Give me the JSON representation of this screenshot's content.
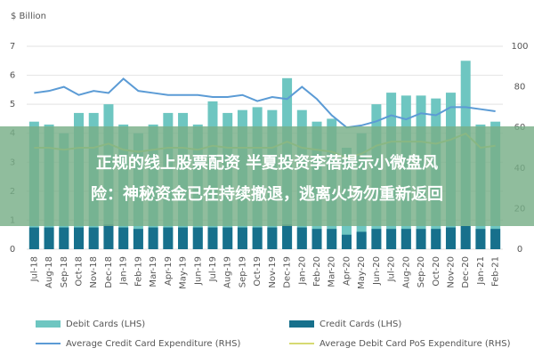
{
  "chart_data": {
    "type": "bar",
    "y_label": "$ Billion",
    "categories": [
      "Jul-18",
      "Aug-18",
      "Sep-18",
      "Oct-18",
      "Nov-18",
      "Dec-18",
      "Jan-19",
      "Feb-19",
      "Mar-19",
      "Apr-19",
      "May-19",
      "Jun-19",
      "Jul-19",
      "Aug-19",
      "Sep-19",
      "Oct-19",
      "Nov-19",
      "Dec-19",
      "Jan-20",
      "Feb-20",
      "Mar-20",
      "Apr-20",
      "May-20",
      "Jun-20",
      "Jul-20",
      "Aug-20",
      "Sep-20",
      "Oct-20",
      "Nov-20",
      "Dec-20",
      "Jan-21",
      "Feb-21"
    ],
    "series": [
      {
        "name": "Debit Cards (LHS)",
        "color": "#6ec6c1",
        "values": [
          4.4,
          4.3,
          4.0,
          4.7,
          4.7,
          5.0,
          4.3,
          4.0,
          4.3,
          4.7,
          4.7,
          4.3,
          5.1,
          4.7,
          4.8,
          4.9,
          4.8,
          5.9,
          4.8,
          4.4,
          4.5,
          3.5,
          4.0,
          5.0,
          5.4,
          5.3,
          5.3,
          5.2,
          5.4,
          6.5,
          4.3,
          4.4
        ]
      },
      {
        "name": "Credit Cards (LHS)",
        "color": "#17708c",
        "values": [
          0.75,
          0.75,
          0.75,
          0.75,
          0.75,
          0.85,
          0.75,
          0.7,
          0.75,
          0.75,
          0.75,
          0.75,
          0.75,
          0.75,
          0.75,
          0.75,
          0.75,
          0.85,
          0.75,
          0.7,
          0.7,
          0.5,
          0.6,
          0.7,
          0.7,
          0.7,
          0.7,
          0.7,
          0.75,
          0.8,
          0.7,
          0.7
        ]
      },
      {
        "name": "Average Credit Card Expenditure (RHS)",
        "color": "#5b9bd5",
        "axis": "y2",
        "values": [
          77,
          78,
          80,
          76,
          78,
          77,
          84,
          78,
          77,
          76,
          76,
          76,
          75,
          75,
          76,
          73,
          75,
          74,
          80,
          74,
          66,
          60,
          61,
          63,
          66,
          64,
          67,
          66,
          70,
          70,
          69,
          68
        ]
      },
      {
        "name": "Average Debit Card PoS Expenditure (RHS)",
        "color": "#d6da72",
        "axis": "y2",
        "values": [
          50,
          50,
          49,
          50,
          50,
          52,
          49,
          48,
          49,
          50,
          50,
          49,
          51,
          50,
          50,
          50,
          50,
          53,
          50,
          49,
          48,
          45,
          47,
          51,
          53,
          53,
          53,
          52,
          54,
          57,
          50,
          51
        ]
      }
    ],
    "ylim": [
      0,
      7
    ],
    "yticks": [
      0,
      1,
      2,
      3,
      4,
      5,
      6,
      7
    ],
    "y2lim": [
      0,
      100
    ],
    "y2ticks": [
      0,
      20,
      40,
      60,
      80,
      100
    ],
    "grid": true
  },
  "banner": {
    "lines": [
      "正规的线上股票配资 半夏投资李蓓提示小微盘风",
      "险：神秘资金已在持续撤退，逃离火场勿重新返回"
    ]
  }
}
